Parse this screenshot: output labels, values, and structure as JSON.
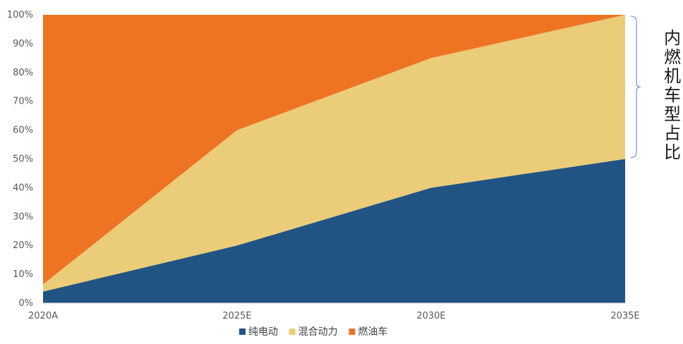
{
  "chart_data": {
    "type": "area",
    "stacked": true,
    "categories": [
      "2020A",
      "2025E",
      "2030E",
      "2035E"
    ],
    "series": [
      {
        "name": "纯电动",
        "values": [
          4,
          20,
          40,
          50
        ],
        "color": "#225483"
      },
      {
        "name": "混合动力",
        "values": [
          2.5,
          40,
          45,
          50
        ],
        "color": "#EBCC78"
      },
      {
        "name": "燃油车",
        "values": [
          93.5,
          40,
          15,
          0
        ],
        "color": "#EE7424"
      }
    ],
    "ylim": [
      0,
      100
    ],
    "yticks": [
      "0%",
      "10%",
      "20%",
      "30%",
      "40%",
      "50%",
      "60%",
      "70%",
      "80%",
      "90%",
      "100%"
    ],
    "grid": false,
    "legend_position": "bottom",
    "annotation": {
      "text": "内燃机车型占比",
      "brace_range": [
        50,
        100
      ]
    }
  }
}
